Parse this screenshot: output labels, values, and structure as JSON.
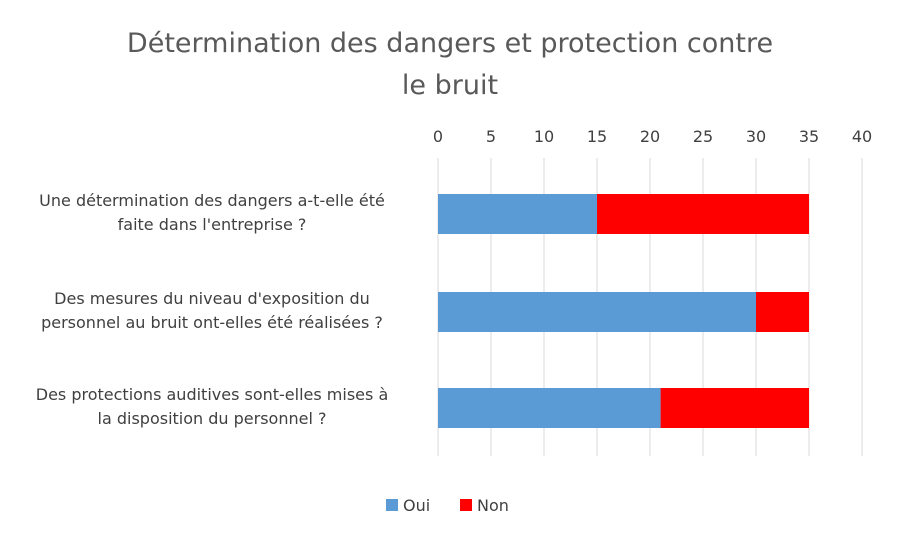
{
  "chart_data": {
    "type": "bar",
    "orientation": "horizontal",
    "stacked": true,
    "title_lines": [
      "Détermination des dangers et protection contre",
      "le bruit"
    ],
    "categories": [
      [
        "Une détermination des dangers a-t-elle été",
        "faite dans l'entreprise ?"
      ],
      [
        "Des mesures du niveau d'exposition du",
        "personnel au bruit ont-elles été réalisées ?"
      ],
      [
        "Des protections auditives sont-elles mises à",
        "la disposition du personnel ?"
      ]
    ],
    "series": [
      {
        "name": "Oui",
        "color": "#5b9bd5",
        "values": [
          15,
          30,
          21
        ]
      },
      {
        "name": "Non",
        "color": "#ff0000",
        "values": [
          20,
          5,
          14
        ]
      }
    ],
    "xlim": [
      0,
      40
    ],
    "x_ticks": [
      "0",
      "5",
      "10",
      "15",
      "20",
      "25",
      "30",
      "35",
      "40"
    ],
    "x_axis_position": "top",
    "grid": true,
    "legend_position": "bottom"
  }
}
